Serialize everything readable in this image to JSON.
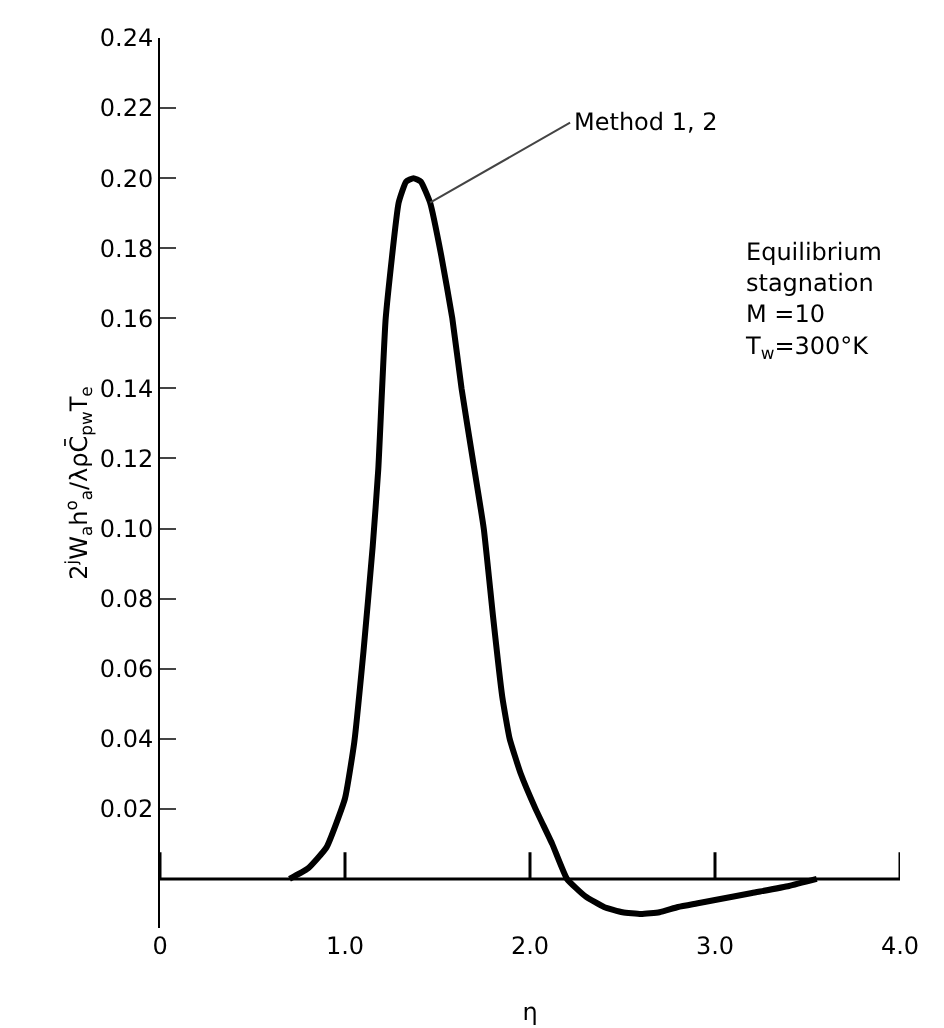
{
  "chart_data": {
    "type": "line",
    "xlabel": "η",
    "ylabel": "2$^{j}$W$_{a}$h$^{o}$$_{a}$/λρC̄$_{pw}$T$_{e}$",
    "series": [
      {
        "color": "#000000",
        "x": [
          0.7,
          0.8,
          0.9,
          1.0,
          1.05,
          1.1,
          1.15,
          1.18,
          1.22,
          1.29,
          1.33,
          1.37,
          1.41,
          1.46,
          1.52,
          1.58,
          1.63,
          1.69,
          1.75,
          1.8,
          1.85,
          1.89,
          1.95,
          2.03,
          2.12,
          2.2,
          2.3,
          2.4,
          2.5,
          2.6,
          2.7,
          2.8,
          2.9,
          3.0,
          3.2,
          3.4,
          3.55
        ],
        "values": [
          0,
          0.003,
          0.009,
          0.023,
          0.039,
          0.065,
          0.095,
          0.117,
          0.16,
          0.193,
          0.199,
          0.2,
          0.199,
          0.193,
          0.178,
          0.16,
          0.14,
          0.12,
          0.1,
          0.075,
          0.052,
          0.04,
          0.03,
          0.02,
          0.01,
          0,
          -0.005,
          -0.008,
          -0.0095,
          -0.01,
          -0.0095,
          -0.008,
          -0.007,
          -0.006,
          -0.004,
          -0.002,
          0
        ]
      }
    ],
    "xlim": [
      0,
      4.0
    ],
    "ylim": [
      -0.014,
      0.24
    ],
    "xticks": [
      0,
      {
        "value": 1,
        "label": "1.0"
      },
      {
        "value": 2,
        "label": "2.0"
      },
      {
        "value": 3,
        "label": "3.0"
      },
      {
        "value": 4,
        "label": "4.0"
      }
    ],
    "yticks": [
      0.02,
      0.04,
      0.06,
      0.08,
      {
        "value": 0.1,
        "label": "0.10"
      },
      0.12,
      0.14,
      0.16,
      0.18,
      {
        "value": 0.2,
        "label": "0.20"
      },
      0.22,
      0.24
    ],
    "annotations": [
      {
        "text": "Method 1, 2",
        "x": 1.46,
        "y": 0.193
      },
      "Equilibrium\nstagnation\nM =10\nT$_{w}$=300°K"
    ],
    "grid": false,
    "marker": "none",
    "line_style": "solid"
  }
}
